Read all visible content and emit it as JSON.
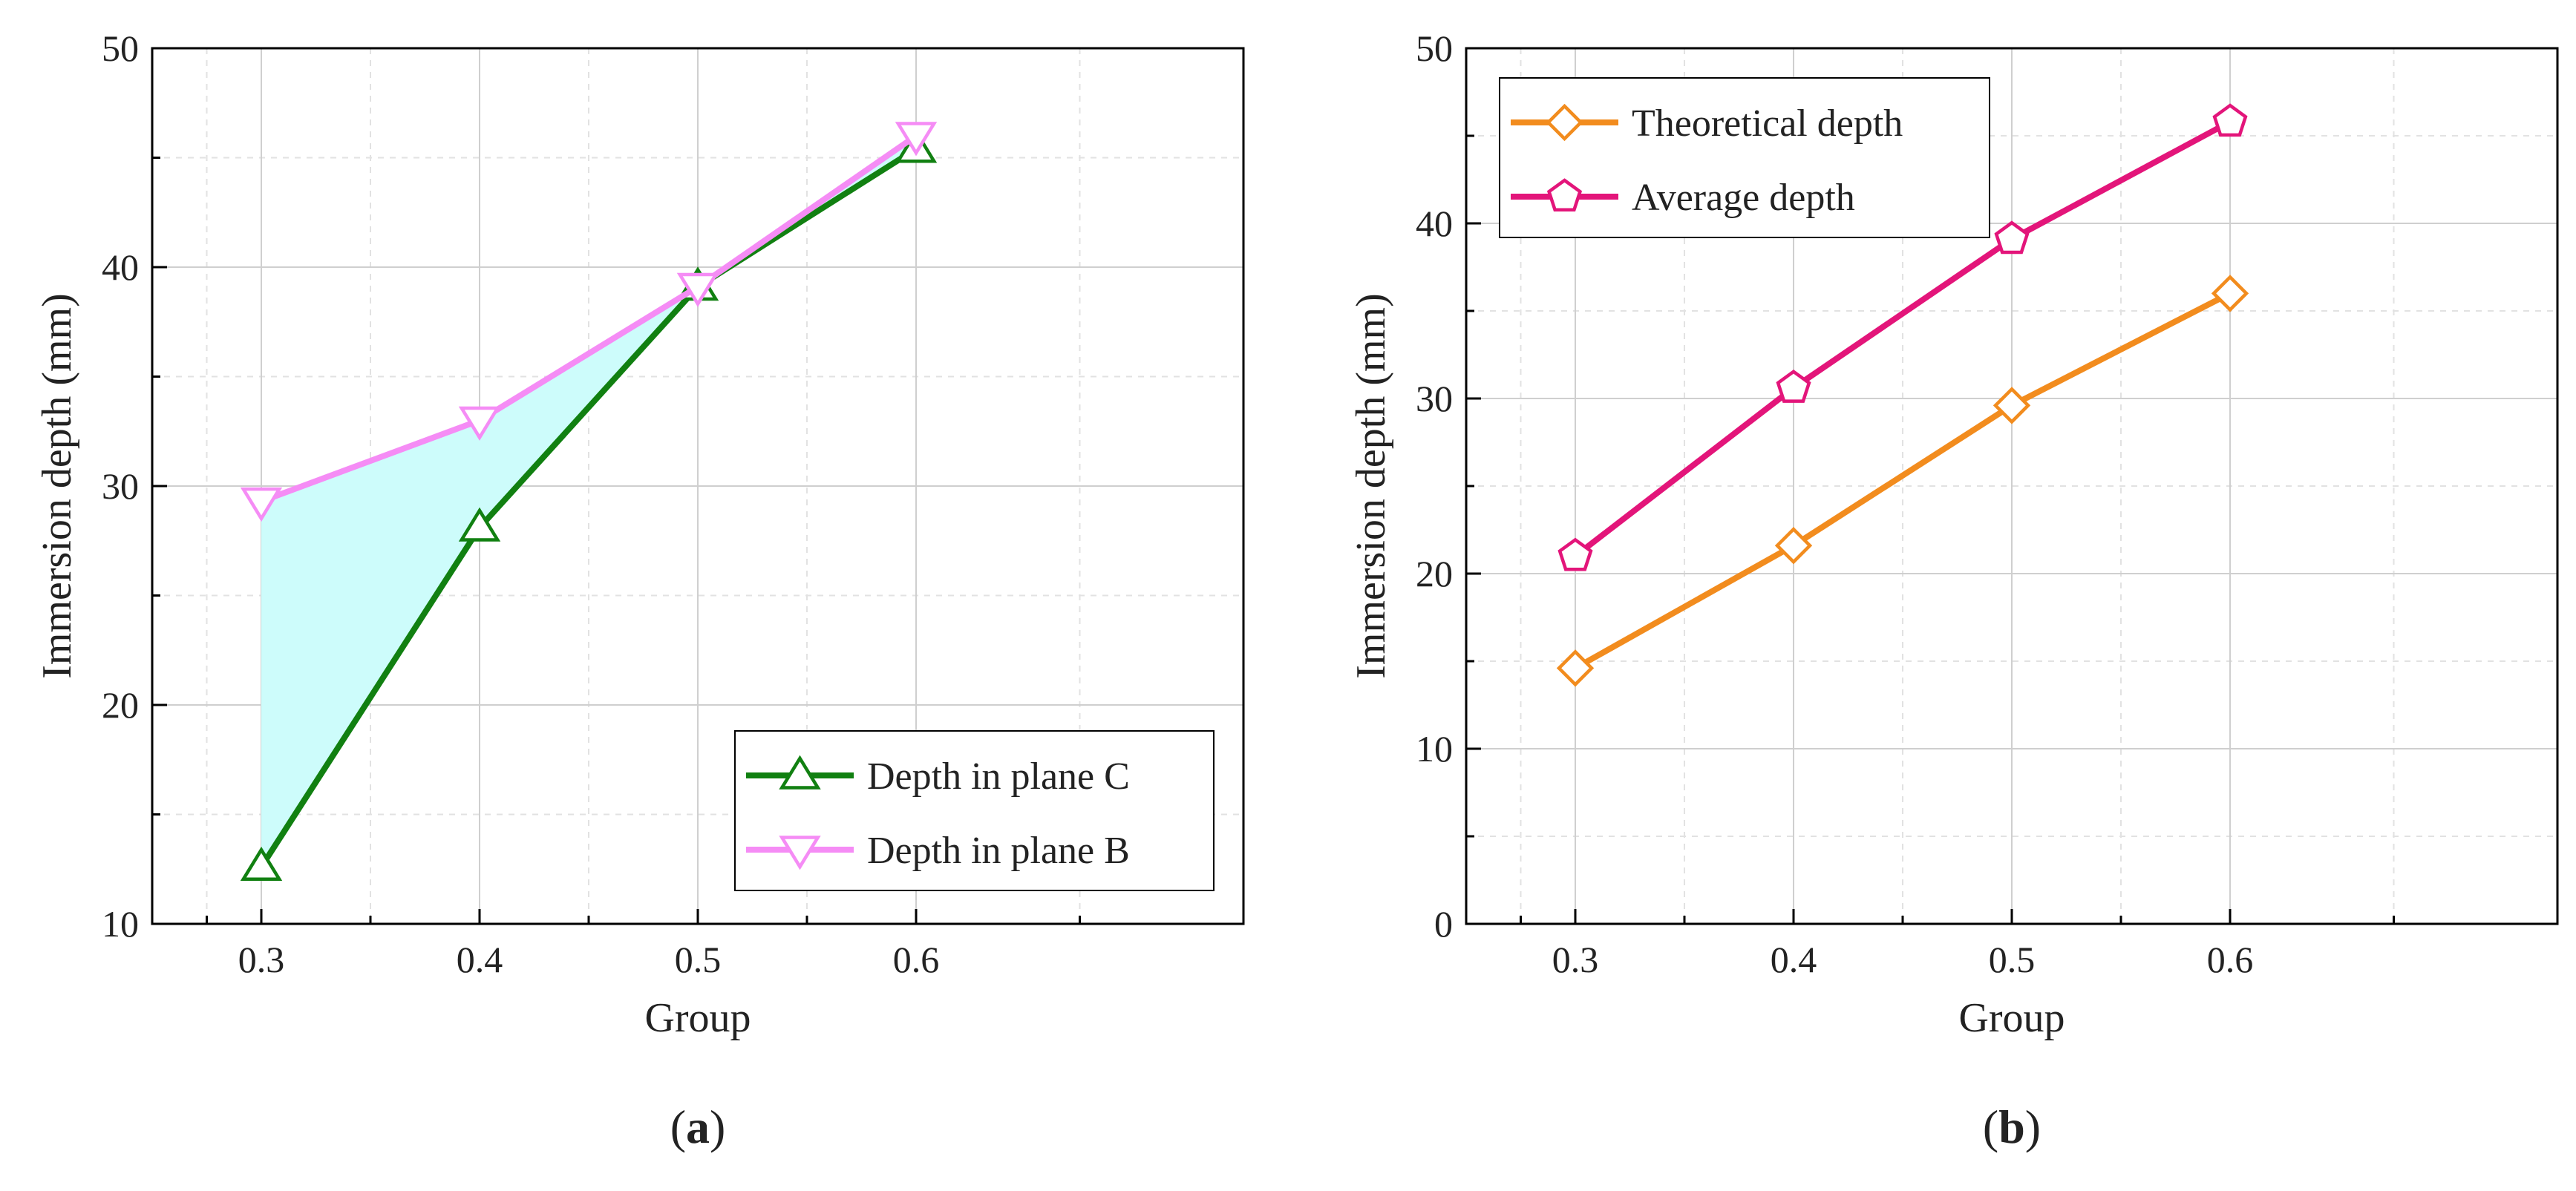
{
  "figure": {
    "panels": [
      {
        "id": "a",
        "label_open": "(",
        "label_letter": "a",
        "label_close": ")"
      },
      {
        "id": "b",
        "label_open": "(",
        "label_letter": "b",
        "label_close": ")"
      }
    ]
  },
  "chart_data": [
    {
      "type": "line",
      "panel": "a",
      "xlabel": "Group",
      "ylabel": "Immersion depth (mm)",
      "x": [
        0.3,
        0.4,
        0.5,
        0.6
      ],
      "x_tick_labels": [
        "0.3",
        "0.4",
        "0.5",
        "0.6"
      ],
      "xlim": [
        0.25,
        0.75
      ],
      "ylim": [
        10,
        50
      ],
      "y_ticks": [
        10,
        20,
        30,
        40,
        50
      ],
      "y_tick_labels": [
        "10",
        "20",
        "30",
        "40",
        "50"
      ],
      "grid": true,
      "legend_position": "bottom-right",
      "fill_between": {
        "series": [
          "Depth in plane C",
          "Depth in plane B"
        ],
        "color": "#cdfcfb"
      },
      "series": [
        {
          "name": "Depth in plane C",
          "values": [
            12.6,
            28.1,
            39.1,
            45.4
          ],
          "color": "#118011",
          "marker": "triangle-up"
        },
        {
          "name": "Depth in plane B",
          "values": [
            29.3,
            33.0,
            39.1,
            46.0
          ],
          "color": "#f58cf5",
          "marker": "triangle-down"
        }
      ]
    },
    {
      "type": "line",
      "panel": "b",
      "xlabel": "Group",
      "ylabel": "Immersion depth (mm)",
      "x": [
        0.3,
        0.4,
        0.5,
        0.6
      ],
      "x_tick_labels": [
        "0.3",
        "0.4",
        "0.5",
        "0.6"
      ],
      "xlim": [
        0.25,
        0.75
      ],
      "ylim": [
        0,
        50
      ],
      "y_ticks": [
        0,
        10,
        20,
        30,
        40,
        50
      ],
      "y_tick_labels": [
        "0",
        "10",
        "20",
        "30",
        "40",
        "50"
      ],
      "grid": true,
      "legend_position": "top-left",
      "series": [
        {
          "name": "Theoretical depth",
          "values": [
            14.6,
            21.6,
            29.6,
            36.0
          ],
          "color": "#f28c1e",
          "marker": "diamond"
        },
        {
          "name": "Average depth",
          "values": [
            21.0,
            30.6,
            39.1,
            45.8
          ],
          "color": "#e3157a",
          "marker": "pentagon"
        }
      ]
    }
  ]
}
